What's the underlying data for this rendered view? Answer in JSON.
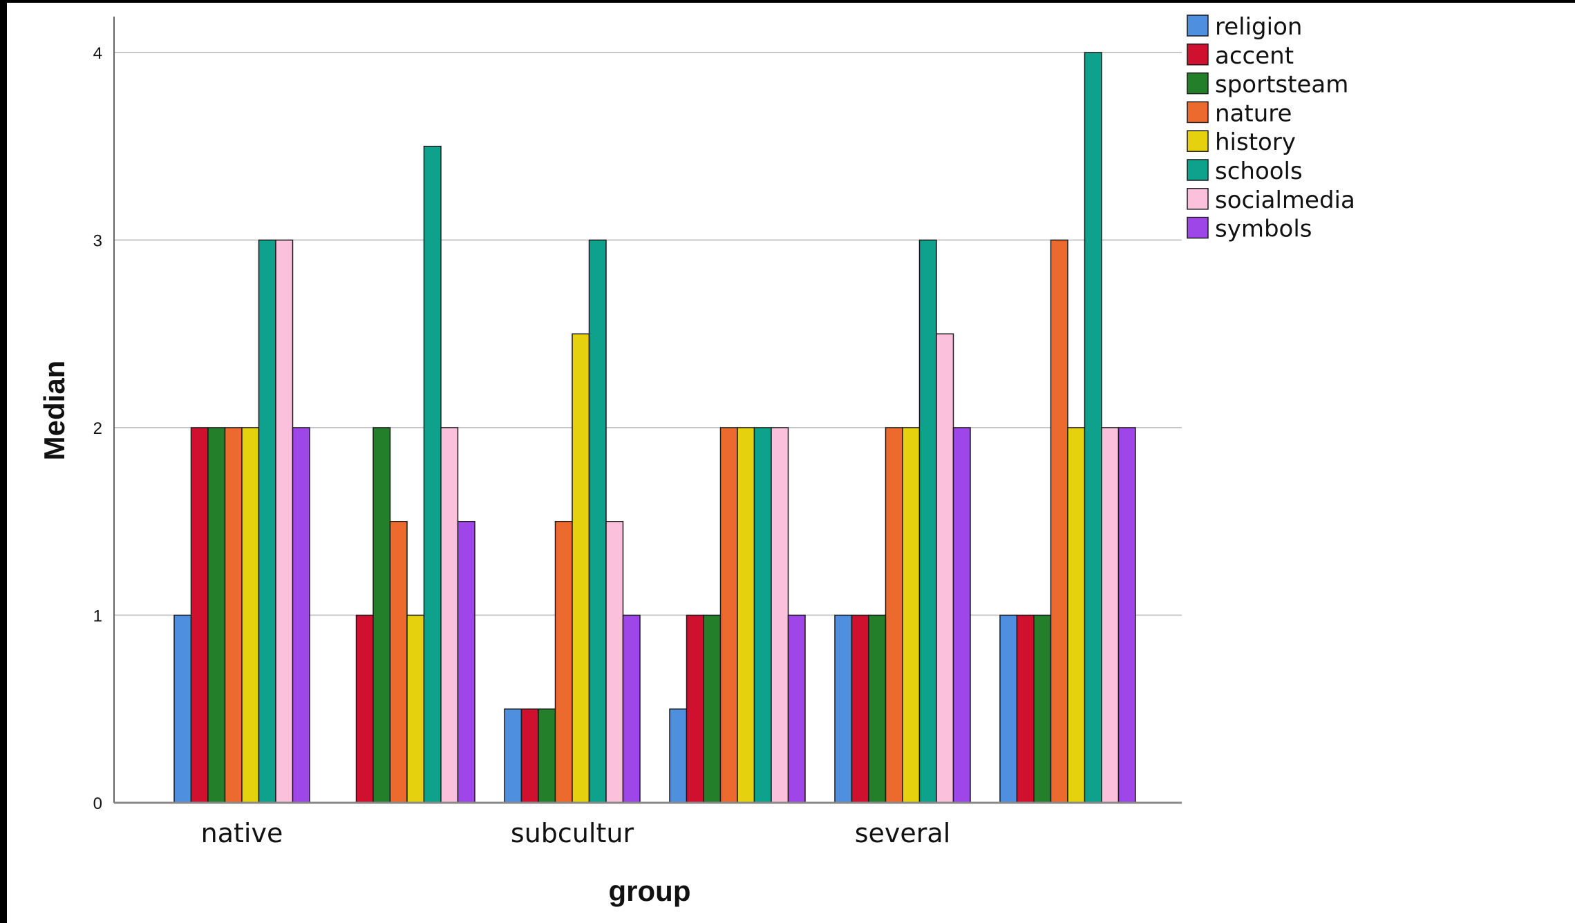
{
  "chart_data": {
    "type": "bar",
    "xlabel": "group",
    "ylabel": "Median",
    "ylim": [
      0,
      4
    ],
    "yticks": [
      "0",
      "1",
      "2",
      "3",
      "4"
    ],
    "grid": true,
    "legend_position": "top-right",
    "categories": [
      "native",
      "",
      "subcultur",
      "",
      "several",
      ""
    ],
    "series": [
      {
        "name": "religion",
        "color": "#4f8fe0",
        "values": [
          1,
          0,
          0.5,
          0.5,
          1,
          1
        ]
      },
      {
        "name": "accent",
        "color": "#d0102f",
        "values": [
          2,
          1,
          0.5,
          1,
          1,
          1
        ]
      },
      {
        "name": "sportsteam",
        "color": "#247f2b",
        "values": [
          2,
          2,
          0.5,
          1,
          1,
          1
        ]
      },
      {
        "name": "nature",
        "color": "#ec6a2d",
        "values": [
          2,
          1.5,
          1.5,
          2,
          2,
          3
        ]
      },
      {
        "name": "history",
        "color": "#e5d10e",
        "values": [
          2,
          1,
          2.5,
          2,
          2,
          2
        ]
      },
      {
        "name": "schools",
        "color": "#0ea28d",
        "values": [
          3,
          3.5,
          3,
          2,
          3,
          4
        ]
      },
      {
        "name": "socialmedia",
        "color": "#fbc1dc",
        "values": [
          3,
          2,
          1.5,
          2,
          2.5,
          2
        ]
      },
      {
        "name": "symbols",
        "color": "#9e46e8",
        "values": [
          2,
          1.5,
          1,
          1,
          2,
          2
        ]
      }
    ]
  }
}
